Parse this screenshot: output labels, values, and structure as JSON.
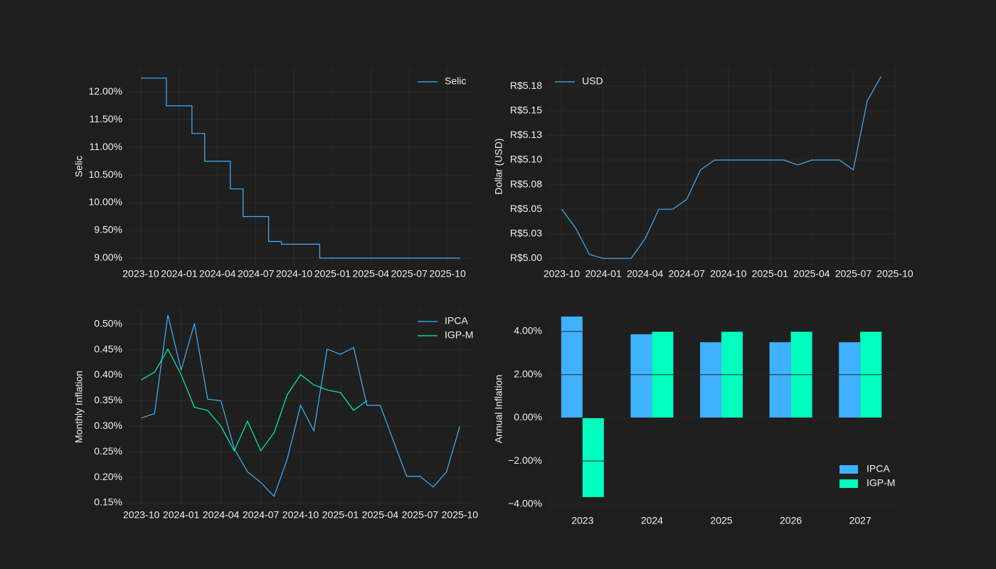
{
  "chart_data": [
    {
      "type": "line",
      "step": "post",
      "ylabel": "Selic",
      "legend": "upper right",
      "grid": true,
      "x": [
        "2023-10",
        "2023-12",
        "2024-02",
        "2024-03",
        "2024-05",
        "2024-06",
        "2024-08",
        "2024-09",
        "2024-12",
        "2025-11"
      ],
      "series": [
        {
          "name": "Selic",
          "color": "#3fb1ff",
          "values": [
            12.25,
            11.75,
            11.25,
            10.75,
            10.25,
            9.75,
            9.3,
            9.25,
            9.0,
            9.0
          ]
        }
      ],
      "xlim": [
        "2023-09",
        "2025-12"
      ],
      "xticks": [
        "2023-10",
        "2024-01",
        "2024-04",
        "2024-07",
        "2024-10",
        "2025-01",
        "2025-04",
        "2025-07",
        "2025-10"
      ],
      "ylim": [
        8.87,
        12.44
      ],
      "yticks": [
        {
          "value": 9.0,
          "label": "9.00%"
        },
        {
          "value": 9.5,
          "label": "9.50%"
        },
        {
          "value": 10.0,
          "label": "10.00%"
        },
        {
          "value": 10.5,
          "label": "10.50%"
        },
        {
          "value": 11.0,
          "label": "11.00%"
        },
        {
          "value": 11.5,
          "label": "11.50%"
        },
        {
          "value": 12.0,
          "label": "12.00%"
        }
      ]
    },
    {
      "type": "line",
      "ylabel": "Dollar (USD)",
      "legend": "upper left",
      "grid": true,
      "x": [
        "2023-10",
        "2023-11",
        "2023-12",
        "2024-01",
        "2024-02",
        "2024-03",
        "2024-04",
        "2024-05",
        "2024-06",
        "2024-07",
        "2024-08",
        "2024-09",
        "2024-10",
        "2024-11",
        "2024-12",
        "2025-01",
        "2025-02",
        "2025-03",
        "2025-04",
        "2025-05",
        "2025-06",
        "2025-07",
        "2025-08",
        "2025-09"
      ],
      "series": [
        {
          "name": "USD",
          "color": "#3fb1ff",
          "values": [
            5.05,
            5.031,
            5.004,
            5.0,
            5.0,
            5.0,
            5.02,
            5.05,
            5.05,
            5.06,
            5.09,
            5.1,
            5.1,
            5.1,
            5.1,
            5.1,
            5.1,
            5.095,
            5.1,
            5.1,
            5.1,
            5.09,
            5.16,
            5.185
          ]
        }
      ],
      "xlim": [
        "2023-09",
        "2025-10"
      ],
      "xticks": [
        "2023-10",
        "2024-01",
        "2024-04",
        "2024-07",
        "2024-10",
        "2025-01",
        "2025-04",
        "2025-07",
        "2025-10"
      ],
      "ylim": [
        4.993,
        5.194
      ],
      "yticks": [
        {
          "value": 5.0,
          "label": "R$5.00"
        },
        {
          "value": 5.025,
          "label": "R$5.03"
        },
        {
          "value": 5.05,
          "label": "R$5.05"
        },
        {
          "value": 5.075,
          "label": "R$5.08"
        },
        {
          "value": 5.1,
          "label": "R$5.10"
        },
        {
          "value": 5.125,
          "label": "R$5.13"
        },
        {
          "value": 5.15,
          "label": "R$5.15"
        },
        {
          "value": 5.175,
          "label": "R$5.18"
        }
      ]
    },
    {
      "type": "line",
      "ylabel": "Monthly Inflation",
      "legend": "upper right",
      "grid": true,
      "x": [
        "2023-10",
        "2023-11",
        "2023-12",
        "2024-01",
        "2024-02",
        "2024-03",
        "2024-04",
        "2024-05",
        "2024-06",
        "2024-07",
        "2024-08",
        "2024-09",
        "2024-10",
        "2024-11",
        "2024-12",
        "2025-01",
        "2025-02",
        "2025-03",
        "2025-04",
        "2025-05",
        "2025-06",
        "2025-07",
        "2025-08",
        "2025-09",
        "2025-10"
      ],
      "series": [
        {
          "name": "IPCA",
          "color": "#3fb1ff",
          "values": [
            0.316,
            0.325,
            0.518,
            0.41,
            0.501,
            0.353,
            0.35,
            0.256,
            0.211,
            0.19,
            0.163,
            0.236,
            0.341,
            0.291,
            0.451,
            0.441,
            0.454,
            0.341,
            0.341,
            0.271,
            0.202,
            0.202,
            0.181,
            0.211,
            0.3
          ]
        },
        {
          "name": "IGP-M",
          "color": "#00f5b8",
          "values": [
            0.391,
            0.406,
            0.451,
            0.401,
            0.337,
            0.331,
            0.3,
            0.252,
            0.31,
            0.252,
            0.287,
            0.362,
            0.401,
            0.381,
            0.371,
            0.366,
            0.331,
            0.35,
            null,
            null,
            null,
            null,
            null,
            null,
            null
          ]
        }
      ],
      "xlim": [
        "2023-09",
        "2025-11"
      ],
      "xticks": [
        "2023-10",
        "2024-01",
        "2024-04",
        "2024-07",
        "2024-10",
        "2025-01",
        "2025-04",
        "2025-07",
        "2025-10"
      ],
      "ylim": [
        0.143,
        0.533
      ],
      "yticks": [
        {
          "value": 0.15,
          "label": "0.15%"
        },
        {
          "value": 0.2,
          "label": "0.20%"
        },
        {
          "value": 0.25,
          "label": "0.25%"
        },
        {
          "value": 0.3,
          "label": "0.30%"
        },
        {
          "value": 0.35,
          "label": "0.35%"
        },
        {
          "value": 0.4,
          "label": "0.40%"
        },
        {
          "value": 0.45,
          "label": "0.45%"
        },
        {
          "value": 0.5,
          "label": "0.50%"
        }
      ]
    },
    {
      "type": "bar",
      "ylabel": "Annual Inflation",
      "legend": "lower right",
      "grid": true,
      "categories": [
        "2023",
        "2024",
        "2025",
        "2026",
        "2027"
      ],
      "series": [
        {
          "name": "IPCA",
          "color": "#3fb1ff",
          "values": [
            4.69,
            3.87,
            3.5,
            3.5,
            3.5
          ]
        },
        {
          "name": "IGP-M",
          "color": "#00ffbf",
          "values": [
            -3.67,
            4.0,
            4.0,
            4.0,
            4.0
          ]
        }
      ],
      "ylim": [
        -4.3,
        5.12
      ],
      "yticks": [
        {
          "value": -4,
          "label": "−4.00%"
        },
        {
          "value": -2,
          "label": "−2.00%"
        },
        {
          "value": 0,
          "label": "0.00%"
        },
        {
          "value": 2,
          "label": "2.00%"
        },
        {
          "value": 4,
          "label": "4.00%"
        }
      ]
    }
  ]
}
